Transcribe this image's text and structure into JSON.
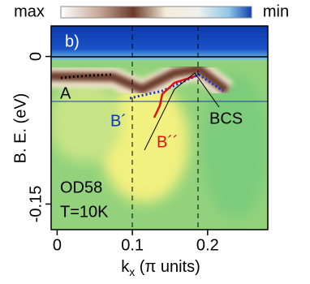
{
  "chart_data": {
    "type": "map",
    "colorbar": {
      "low_label": "max",
      "high_label": "min"
    },
    "panel_label": "b)",
    "y_label": "B. E. (eV)",
    "x_label": {
      "main": "k",
      "sub": "x",
      "rest": " (π units)"
    },
    "xlim": [
      -0.008,
      0.28
    ],
    "xticks": [
      0,
      0.1,
      0.2
    ],
    "ylim": [
      -0.176,
      0.031
    ],
    "yticks": [
      0,
      -0.15
    ],
    "annotations": [
      {
        "text": "A",
        "color": "#000000"
      },
      {
        "text": "B´",
        "color": "#1030c0"
      },
      {
        "text": "B´´",
        "color": "#e01010"
      },
      {
        "text": "BCS",
        "color": "#000000"
      },
      {
        "text": "OD58",
        "color": "#000000"
      },
      {
        "text": "T=10K",
        "color": "#000000"
      }
    ]
  }
}
